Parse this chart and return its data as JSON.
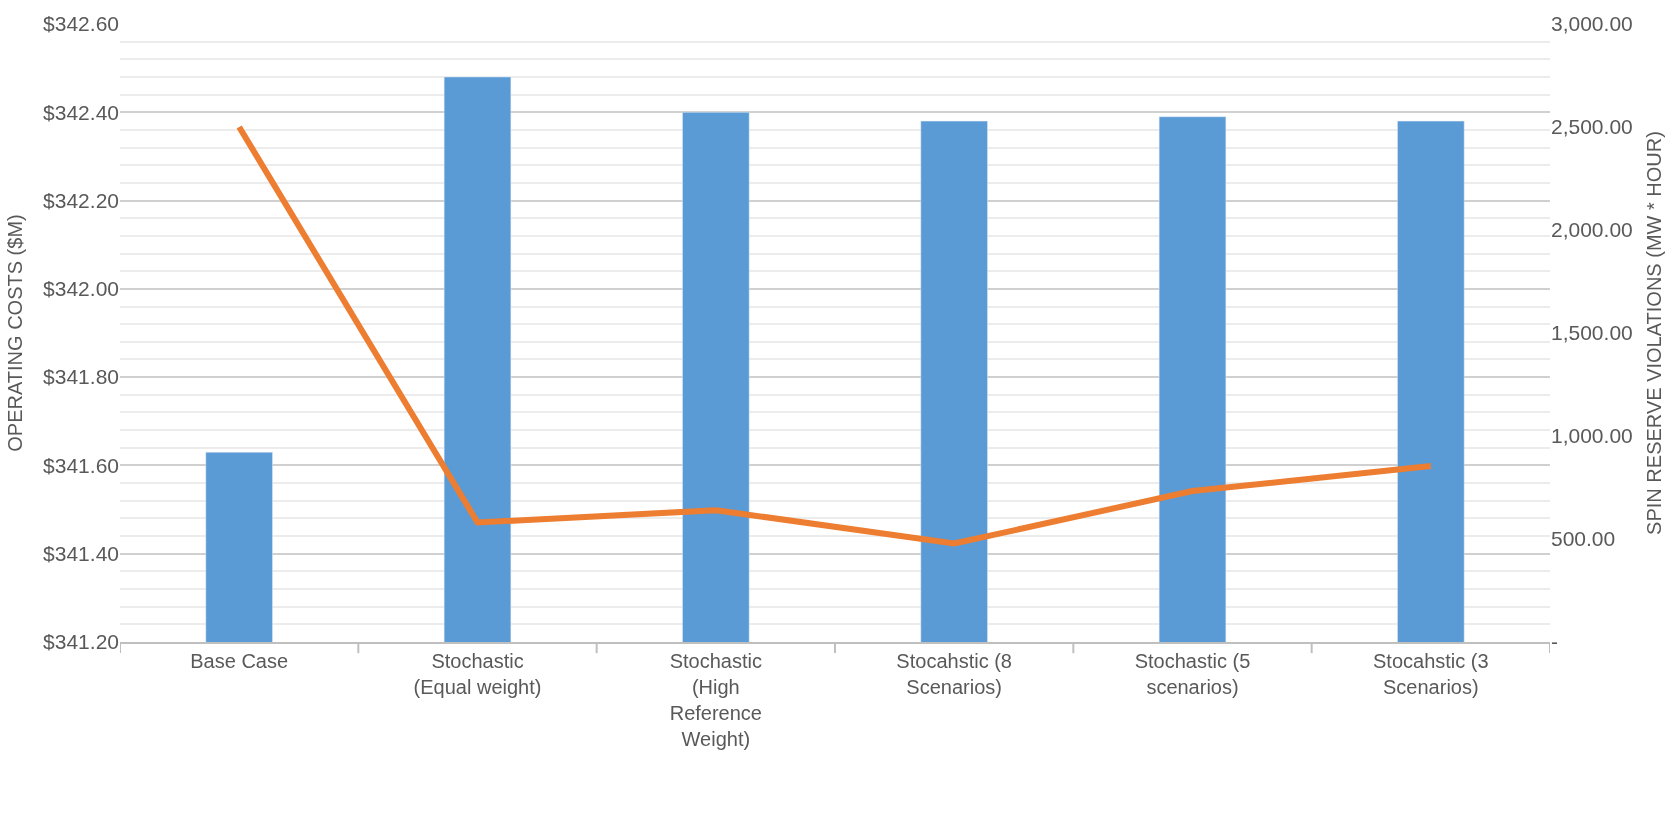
{
  "chart_data": {
    "type": "bar",
    "ylabel": "OPERATING COSTS ($M)",
    "y2label": "SPIN RESERVE VIOLATIONS (MW * HOUR)",
    "categories": [
      "Base Case",
      "Stochastic (Equal weight)",
      "Stochastic (High Reference Weight)",
      "Stocahstic (8 Scenarios)",
      "Stochastic (5 scenarios)",
      "Stocahstic (3 Scenarios)"
    ],
    "series": [
      {
        "color": "#5b9bd5",
        "values": [
          341.63,
          342.48,
          342.4,
          342.38,
          342.39,
          342.38
        ]
      },
      {
        "type": "line",
        "axis": "y2",
        "color": "#ed7d31",
        "values": [
          2500,
          580,
          640,
          478,
          733,
          854
        ]
      }
    ],
    "ylim": [
      341.2,
      342.6
    ],
    "yticks": [
      {
        "value": 341.2,
        "label": "$341.20"
      },
      {
        "value": 341.4,
        "label": "$341.40"
      },
      {
        "value": 341.6,
        "label": "$341.60"
      },
      {
        "value": 341.8,
        "label": "$341.80"
      },
      {
        "value": 342.0,
        "label": "$342.00"
      },
      {
        "value": 342.2,
        "label": "$342.20"
      },
      {
        "value": 342.4,
        "label": "$342.40"
      },
      {
        "value": 342.6,
        "label": "$342.60"
      }
    ],
    "y2lim": [
      0,
      3000
    ],
    "y2ticks": [
      {
        "value": 0,
        "label": "-"
      },
      {
        "value": 500,
        "label": "500.00"
      },
      {
        "value": 1000,
        "label": "1,000.00"
      },
      {
        "value": 1500,
        "label": "1,500.00"
      },
      {
        "value": 2000,
        "label": "2,000.00"
      },
      {
        "value": 2500,
        "label": "2,500.00"
      },
      {
        "value": 3000,
        "label": "3,000.00"
      }
    ],
    "grid": "y",
    "marker": "none",
    "line_style": "solid"
  }
}
